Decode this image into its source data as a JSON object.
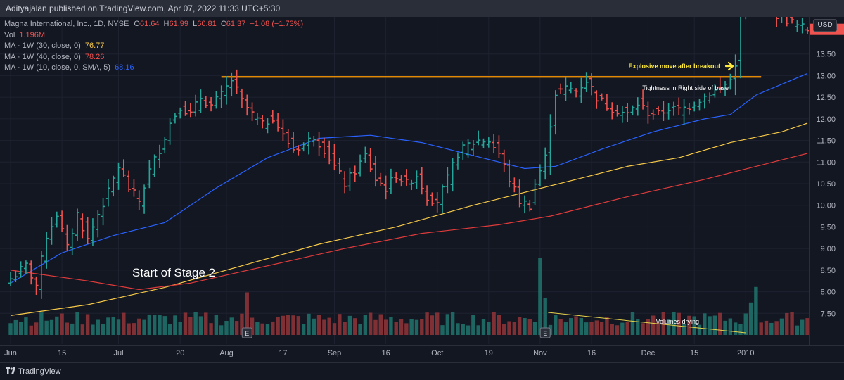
{
  "header": {
    "publish_line": "Adityajalan published on TradingView.com, Apr 07, 2022 11:33 UTC+5:30"
  },
  "legend": {
    "symbol_line": "Magna International, Inc., 1D, NYSE",
    "o_label": "O",
    "o_value": "61.64",
    "h_label": "H",
    "h_value": "61.99",
    "l_label": "L",
    "l_value": "60.81",
    "c_label": "C",
    "c_value": "61.37",
    "change": "−1.08 (−1.73%)",
    "vol_label": "Vol",
    "vol_value": "1.196M",
    "ma1_label": "MA · 1W (30, close, 0)",
    "ma1_value": "76.77",
    "ma2_label": "MA · 1W (40, close, 0)",
    "ma2_value": "78.26",
    "ma3_label": "MA · 1W (10, close, 0, SMA, 5)",
    "ma3_value": "68.16"
  },
  "currency_button": "USD",
  "footer": {
    "brand": "TradingView"
  },
  "colors": {
    "up": "#26a69a",
    "down": "#ef5350",
    "ma_blue": "#2962ff",
    "ma_yellow": "#f7c948",
    "ma_red": "#e03b3b",
    "resistance": "#ff9800",
    "annotation": "#ffffff",
    "arrow": "#ffeb3b"
  },
  "chart_data": {
    "type": "ohlc_bar",
    "x_axis": {
      "labels": [
        "Jun",
        "15",
        "Jul",
        "20",
        "Aug",
        "17",
        "Sep",
        "16",
        "Oct",
        "19",
        "Nov",
        "16",
        "Dec",
        "15",
        "2010"
      ],
      "label_bar_index": [
        0,
        10,
        21,
        33,
        42,
        53,
        63,
        73,
        83,
        93,
        103,
        113,
        124,
        133,
        143
      ]
    },
    "y_axis": {
      "ticks": [
        7.5,
        8.0,
        8.5,
        9.0,
        9.5,
        10.0,
        10.5,
        11.0,
        11.5,
        12.0,
        12.5,
        13.0,
        13.5
      ],
      "tick_labels": [
        "7.50",
        "8.00",
        "8.50",
        "9.00",
        "9.50",
        "10.00",
        "10.50",
        "11.00",
        "11.50",
        "12.00",
        "12.50",
        "13.00",
        "13.50"
      ],
      "range": [
        7.0,
        14.7
      ],
      "position": "right"
    },
    "last_price": {
      "value": 14.07,
      "label": "14.07"
    },
    "keypoints_close": [
      [
        0,
        8.3
      ],
      [
        3,
        8.6
      ],
      [
        5,
        8.15
      ],
      [
        7,
        9.3
      ],
      [
        9,
        9.8
      ],
      [
        11,
        9.0
      ],
      [
        13,
        9.8
      ],
      [
        15,
        9.2
      ],
      [
        17,
        9.8
      ],
      [
        19,
        10.3
      ],
      [
        21,
        10.9
      ],
      [
        23,
        10.4
      ],
      [
        25,
        10.1
      ],
      [
        27,
        10.8
      ],
      [
        29,
        11.3
      ],
      [
        31,
        11.9
      ],
      [
        33,
        12.3
      ],
      [
        35,
        12.1
      ],
      [
        37,
        12.5
      ],
      [
        39,
        12.3
      ],
      [
        41,
        12.55
      ],
      [
        43,
        12.9
      ],
      [
        45,
        12.4
      ],
      [
        47,
        12.1
      ],
      [
        49,
        11.85
      ],
      [
        51,
        12.05
      ],
      [
        53,
        11.6
      ],
      [
        55,
        11.3
      ],
      [
        57,
        11.4
      ],
      [
        59,
        11.6
      ],
      [
        61,
        11.3
      ],
      [
        63,
        10.9
      ],
      [
        65,
        10.5
      ],
      [
        67,
        10.8
      ],
      [
        69,
        11.15
      ],
      [
        71,
        10.6
      ],
      [
        73,
        10.4
      ],
      [
        75,
        10.7
      ],
      [
        77,
        10.5
      ],
      [
        79,
        10.7
      ],
      [
        81,
        10.2
      ],
      [
        83,
        10.1
      ],
      [
        85,
        10.6
      ],
      [
        87,
        11.2
      ],
      [
        89,
        11.4
      ],
      [
        91,
        11.5
      ],
      [
        93,
        11.5
      ],
      [
        95,
        11.2
      ],
      [
        97,
        10.6
      ],
      [
        99,
        10.1
      ],
      [
        101,
        10.0
      ],
      [
        102,
        10.5
      ],
      [
        104,
        11.1
      ],
      [
        105,
        11.9
      ],
      [
        106,
        12.6
      ],
      [
        108,
        12.7
      ],
      [
        110,
        12.65
      ],
      [
        112,
        12.9
      ],
      [
        114,
        12.5
      ],
      [
        116,
        12.3
      ],
      [
        118,
        12.2
      ],
      [
        120,
        12.1
      ],
      [
        122,
        12.35
      ],
      [
        124,
        12.15
      ],
      [
        126,
        12.1
      ],
      [
        128,
        12.25
      ],
      [
        130,
        12.2
      ],
      [
        132,
        12.3
      ],
      [
        134,
        12.45
      ],
      [
        136,
        12.6
      ],
      [
        138,
        12.7
      ],
      [
        140,
        12.9
      ],
      [
        141,
        13.3
      ],
      [
        142,
        14.5
      ],
      [
        143,
        14.6
      ],
      [
        145,
        14.85
      ],
      [
        147,
        14.7
      ],
      [
        149,
        14.4
      ],
      [
        151,
        14.3
      ],
      [
        153,
        14.15
      ],
      [
        155,
        14.07
      ]
    ],
    "bar_count": 156,
    "moving_averages": [
      {
        "name": "MA · 1W (10, close, 0, SMA, 5)",
        "color": "#2962ff",
        "points": [
          [
            0,
            8.2
          ],
          [
            10,
            8.9
          ],
          [
            20,
            9.3
          ],
          [
            30,
            9.6
          ],
          [
            40,
            10.4
          ],
          [
            50,
            11.1
          ],
          [
            60,
            11.55
          ],
          [
            70,
            11.62
          ],
          [
            80,
            11.45
          ],
          [
            90,
            11.15
          ],
          [
            100,
            10.85
          ],
          [
            106,
            10.9
          ],
          [
            115,
            11.3
          ],
          [
            125,
            11.7
          ],
          [
            135,
            12.0
          ],
          [
            140,
            12.1
          ],
          [
            145,
            12.55
          ],
          [
            150,
            12.8
          ],
          [
            155,
            13.05
          ]
        ]
      },
      {
        "name": "MA · 1W (30, close, 0)",
        "color": "#f7c948",
        "points": [
          [
            0,
            7.45
          ],
          [
            15,
            7.7
          ],
          [
            30,
            8.1
          ],
          [
            45,
            8.6
          ],
          [
            60,
            9.1
          ],
          [
            75,
            9.5
          ],
          [
            90,
            10.0
          ],
          [
            100,
            10.3
          ],
          [
            110,
            10.6
          ],
          [
            120,
            10.9
          ],
          [
            130,
            11.1
          ],
          [
            140,
            11.45
          ],
          [
            150,
            11.7
          ],
          [
            155,
            11.9
          ]
        ]
      },
      {
        "name": "MA · 1W (40, close, 0)",
        "color": "#e03b3b",
        "points": [
          [
            0,
            8.5
          ],
          [
            15,
            8.25
          ],
          [
            25,
            8.05
          ],
          [
            35,
            8.2
          ],
          [
            50,
            8.6
          ],
          [
            65,
            9.0
          ],
          [
            80,
            9.35
          ],
          [
            95,
            9.55
          ],
          [
            105,
            9.75
          ],
          [
            120,
            10.2
          ],
          [
            135,
            10.6
          ],
          [
            145,
            10.9
          ],
          [
            155,
            11.2
          ]
        ]
      }
    ],
    "resistance_level": {
      "value": 12.97,
      "from_bar": 41,
      "to_bar": 146
    },
    "annotations": [
      {
        "name": "stage2",
        "text": "Start of Stage 2"
      },
      {
        "name": "explosive",
        "text": "Explosive move after breakout"
      },
      {
        "name": "tightness",
        "text": "Tightness in Right side of base"
      },
      {
        "name": "volumes",
        "text": "Volumes drying"
      }
    ],
    "volume": {
      "spike_bars": [
        [
          46,
          0.55
        ],
        [
          103,
          1.0
        ],
        [
          104,
          0.48
        ],
        [
          144,
          0.42
        ],
        [
          145,
          0.62
        ]
      ]
    },
    "earnings_markers": [
      46,
      104
    ],
    "grid": true,
    "legend": "top-left"
  }
}
